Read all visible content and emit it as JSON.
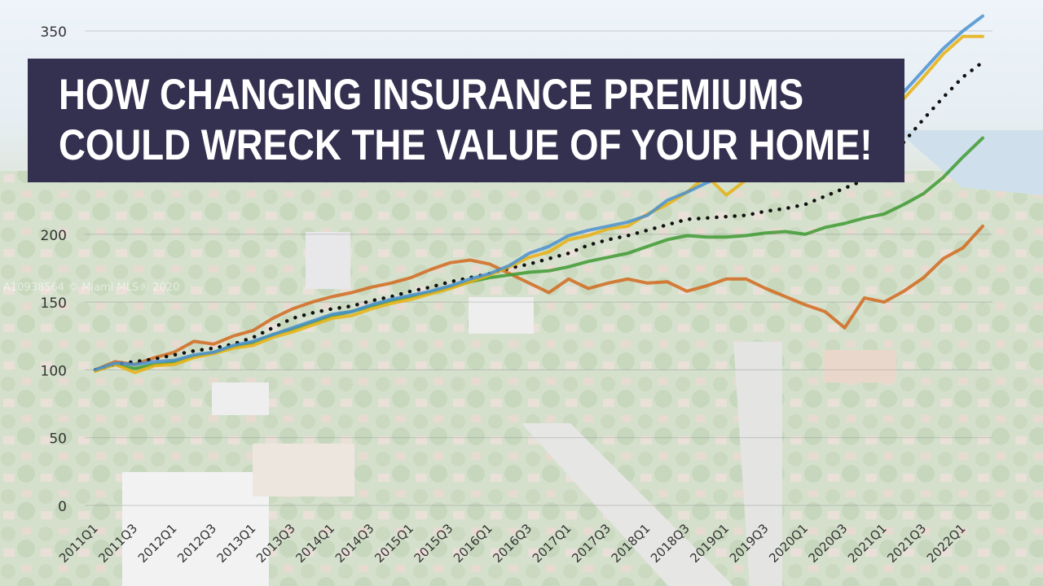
{
  "headline": {
    "line1": "HOW CHANGING INSURANCE PREMIUMS",
    "line2": "COULD WRECK THE VALUE OF YOUR HOME!"
  },
  "watermark": "A10938564 © Miami MLS® 2020",
  "colors": {
    "banner_bg": "#34304f",
    "banner_text": "#ffffff",
    "series_blue": "#4a90d0",
    "series_yellow": "#e8b010",
    "series_dotted": "#111111",
    "series_green": "#3f9a33",
    "series_orange": "#d26a1e"
  },
  "chart_data": {
    "type": "line",
    "ylim": [
      0,
      350
    ],
    "yticks": [
      "0",
      "50",
      "100",
      "150",
      "200",
      "350"
    ],
    "grid": true,
    "x": [
      "2011Q1",
      "2011Q2",
      "2011Q3",
      "2011Q4",
      "2012Q1",
      "2012Q2",
      "2012Q3",
      "2012Q4",
      "2013Q1",
      "2013Q2",
      "2013Q3",
      "2013Q4",
      "2014Q1",
      "2014Q2",
      "2014Q3",
      "2014Q4",
      "2015Q1",
      "2015Q2",
      "2015Q3",
      "2015Q4",
      "2016Q1",
      "2016Q2",
      "2016Q3",
      "2016Q4",
      "2017Q1",
      "2017Q2",
      "2017Q3",
      "2017Q4",
      "2018Q1",
      "2018Q2",
      "2018Q3",
      "2018Q4",
      "2019Q1",
      "2019Q2",
      "2019Q3",
      "2019Q4",
      "2020Q1",
      "2020Q2",
      "2020Q3",
      "2020Q4",
      "2021Q1",
      "2021Q2",
      "2021Q3",
      "2021Q4",
      "2022Q1",
      "2022Q2"
    ],
    "xtick_labels": [
      "2011Q1",
      "2011Q3",
      "2012Q1",
      "2012Q3",
      "2013Q1",
      "2013Q3",
      "2014Q1",
      "2014Q3",
      "2015Q1",
      "2015Q3",
      "2016Q1",
      "2016Q3",
      "2017Q1",
      "2017Q3",
      "2018Q1",
      "2018Q3",
      "2019Q1",
      "2019Q3",
      "2020Q1",
      "2020Q3",
      "2021Q1",
      "2021Q3",
      "2022Q1"
    ],
    "series": [
      {
        "color": "blue",
        "style": "solid",
        "values": [
          100,
          105,
          104,
          106,
          107,
          111,
          113,
          118,
          121,
          126,
          131,
          136,
          141,
          143,
          148,
          152,
          155,
          158,
          162,
          167,
          171,
          177,
          186,
          191,
          199,
          203,
          206,
          209,
          214,
          225,
          231,
          238,
          244,
          244,
          249,
          254,
          258,
          266,
          275,
          283,
          292,
          305,
          321,
          337,
          350,
          361
        ]
      },
      {
        "color": "yellow",
        "style": "solid",
        "values": [
          99,
          104,
          98,
          103,
          104,
          109,
          112,
          116,
          118,
          124,
          128,
          133,
          138,
          140,
          145,
          149,
          152,
          156,
          160,
          165,
          170,
          176,
          183,
          187,
          196,
          199,
          204,
          206,
          215,
          222,
          231,
          243,
          229,
          240,
          248,
          248,
          257,
          262,
          271,
          276,
          288,
          300,
          316,
          333,
          346,
          346
        ]
      },
      {
        "color": "dotted",
        "style": "dotted",
        "values": [
          100,
          104,
          106,
          108,
          111,
          114,
          116,
          119,
          124,
          131,
          138,
          142,
          145,
          147,
          151,
          154,
          158,
          161,
          165,
          168,
          171,
          175,
          178,
          182,
          186,
          192,
          196,
          199,
          203,
          207,
          211,
          212,
          213,
          214,
          217,
          219,
          222,
          228,
          234,
          240,
          253,
          268,
          285,
          301,
          316,
          327
        ]
      },
      {
        "color": "green",
        "style": "solid",
        "values": [
          100,
          104,
          101,
          104,
          106,
          110,
          113,
          117,
          120,
          126,
          130,
          135,
          140,
          143,
          147,
          151,
          154,
          157,
          161,
          165,
          168,
          170,
          172,
          173,
          176,
          180,
          183,
          186,
          191,
          196,
          199,
          198,
          198,
          199,
          201,
          202,
          200,
          205,
          208,
          212,
          215,
          222,
          230,
          242,
          257,
          271
        ]
      },
      {
        "color": "orange",
        "style": "solid",
        "values": [
          100,
          106,
          104,
          109,
          113,
          121,
          119,
          125,
          129,
          138,
          145,
          150,
          154,
          157,
          161,
          164,
          168,
          174,
          179,
          181,
          178,
          171,
          164,
          157,
          167,
          160,
          164,
          167,
          164,
          165,
          158,
          162,
          167,
          167,
          160,
          154,
          148,
          143,
          131,
          153,
          150,
          158,
          168,
          182,
          190,
          206
        ]
      }
    ]
  }
}
